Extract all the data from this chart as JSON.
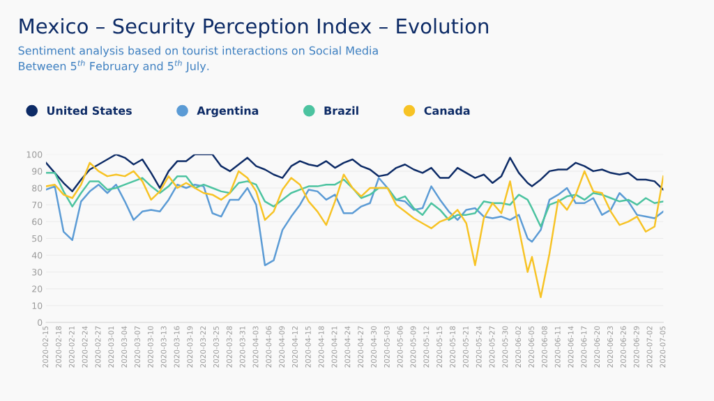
{
  "chart_data": {
    "type": "line",
    "title": "Mexico – Security Perception Index – Evolution",
    "subtitle": "Sentiment analysis based on tourist interactions on Social Media\nBetween 5$^{th}$ February and 5$^{th}$ July.",
    "x": [
      "2020-02-15",
      "2020-02-17",
      "2020-02-19",
      "2020-02-21",
      "2020-02-23",
      "2020-02-25",
      "2020-02-27",
      "2020-02-29",
      "2020-03-02",
      "2020-03-04",
      "2020-03-06",
      "2020-03-08",
      "2020-03-10",
      "2020-03-12",
      "2020-03-14",
      "2020-03-16",
      "2020-03-18",
      "2020-03-20",
      "2020-03-22",
      "2020-03-24",
      "2020-03-26",
      "2020-03-28",
      "2020-03-30",
      "2020-04-01",
      "2020-04-03",
      "2020-04-05",
      "2020-04-07",
      "2020-04-09",
      "2020-04-11",
      "2020-04-13",
      "2020-04-15",
      "2020-04-17",
      "2020-04-19",
      "2020-04-21",
      "2020-04-23",
      "2020-04-25",
      "2020-04-27",
      "2020-04-29",
      "2020-05-01",
      "2020-05-03",
      "2020-05-05",
      "2020-05-07",
      "2020-05-09",
      "2020-05-11",
      "2020-05-13",
      "2020-05-15",
      "2020-05-17",
      "2020-05-19",
      "2020-05-21",
      "2020-05-23",
      "2020-05-25",
      "2020-05-27",
      "2020-05-29",
      "2020-05-31",
      "2020-06-02",
      "2020-06-04",
      "2020-06-05",
      "2020-06-07",
      "2020-06-09",
      "2020-06-11",
      "2020-06-13",
      "2020-06-15",
      "2020-06-17",
      "2020-06-19",
      "2020-06-21",
      "2020-06-23",
      "2020-06-25",
      "2020-06-27",
      "2020-06-29",
      "2020-07-01",
      "2020-07-03",
      "2020-07-05"
    ],
    "series": [
      {
        "name": "United States",
        "color": "#0d2b66",
        "values": [
          95,
          89,
          83,
          78,
          85,
          91,
          94,
          97,
          100,
          98,
          94,
          97,
          89,
          80,
          90,
          96,
          96,
          100,
          100,
          100,
          93,
          90,
          94,
          98,
          93,
          91,
          88,
          86,
          93,
          96,
          94,
          93,
          96,
          92,
          95,
          97,
          93,
          91,
          87,
          88,
          92,
          94,
          91,
          89,
          92,
          86,
          86,
          92,
          89,
          86,
          88,
          83,
          87,
          98,
          89,
          83,
          81,
          85,
          90,
          91,
          91,
          95,
          93,
          90,
          91,
          89,
          88,
          89,
          85,
          85,
          84,
          79
        ]
      },
      {
        "name": "Argentina",
        "color": "#5b9bd5",
        "values": [
          79,
          81,
          54,
          49,
          72,
          78,
          82,
          77,
          82,
          72,
          61,
          66,
          67,
          66,
          73,
          82,
          80,
          82,
          81,
          65,
          63,
          73,
          73,
          80,
          70,
          34,
          37,
          55,
          63,
          70,
          79,
          78,
          73,
          76,
          65,
          65,
          69,
          71,
          86,
          80,
          73,
          72,
          67,
          68,
          81,
          73,
          66,
          61,
          67,
          68,
          63,
          62,
          63,
          61,
          64,
          50,
          48,
          55,
          73,
          76,
          80,
          71,
          71,
          74,
          64,
          67,
          77,
          72,
          64,
          63,
          62,
          66
        ]
      },
      {
        "name": "Brazil",
        "color": "#4cc3a0",
        "values": [
          89,
          89,
          78,
          69,
          77,
          84,
          84,
          79,
          80,
          82,
          84,
          86,
          81,
          77,
          81,
          87,
          87,
          80,
          82,
          80,
          78,
          77,
          83,
          84,
          82,
          72,
          69,
          73,
          77,
          79,
          81,
          81,
          82,
          82,
          85,
          80,
          74,
          76,
          80,
          80,
          73,
          75,
          68,
          64,
          71,
          67,
          61,
          64,
          64,
          65,
          72,
          71,
          71,
          70,
          76,
          73,
          68,
          57,
          70,
          72,
          75,
          76,
          73,
          77,
          76,
          74,
          72,
          73,
          70,
          74,
          71,
          72
        ]
      },
      {
        "name": "Canada",
        "color": "#f7c325",
        "values": [
          81,
          82,
          76,
          74,
          82,
          95,
          90,
          87,
          88,
          87,
          90,
          84,
          73,
          78,
          87,
          80,
          83,
          80,
          77,
          76,
          73,
          77,
          90,
          86,
          78,
          61,
          66,
          79,
          86,
          82,
          72,
          66,
          58,
          72,
          88,
          80,
          75,
          80,
          80,
          80,
          70,
          66,
          62,
          59,
          56,
          60,
          62,
          67,
          59,
          34,
          62,
          71,
          65,
          84,
          56,
          30,
          39,
          15,
          41,
          73,
          67,
          76,
          90,
          78,
          77,
          66,
          58,
          60,
          63,
          54,
          57,
          87
        ]
      }
    ],
    "xlim": [
      "2020-02-15",
      "2020-07-05"
    ],
    "xticks": [
      "2020-02-15",
      "2020-02-18",
      "2020-02-21",
      "2020-02-24",
      "2020-02-27",
      "2020-03-01",
      "2020-03-04",
      "2020-03-07",
      "2020-03-10",
      "2020-03-13",
      "2020-03-16",
      "2020-03-19",
      "2020-03-22",
      "2020-03-25",
      "2020-03-28",
      "2020-03-31",
      "2020-04-03",
      "2020-04-06",
      "2020-04-09",
      "2020-04-12",
      "2020-04-15",
      "2020-04-18",
      "2020-04-21",
      "2020-04-24",
      "2020-04-27",
      "2020-04-30",
      "2020-05-03",
      "2020-05-06",
      "2020-05-09",
      "2020-05-12",
      "2020-05-15",
      "2020-05-18",
      "2020-05-21",
      "2020-05-24",
      "2020-05-27",
      "2020-05-30",
      "2020-06-02",
      "2020-06-05",
      "2020-06-08",
      "2020-06-11",
      "2020-06-14",
      "2020-06-17",
      "2020-06-20",
      "2020-06-23",
      "2020-06-26",
      "2020-06-29",
      "2020-07-02",
      "2020-07-05"
    ],
    "ylim": [
      0,
      100
    ],
    "yticks": [
      0,
      10,
      20,
      30,
      40,
      50,
      60,
      70,
      80,
      90,
      100
    ],
    "grid": "y",
    "legend": "top left",
    "marker": "none",
    "line_style": "solid"
  }
}
